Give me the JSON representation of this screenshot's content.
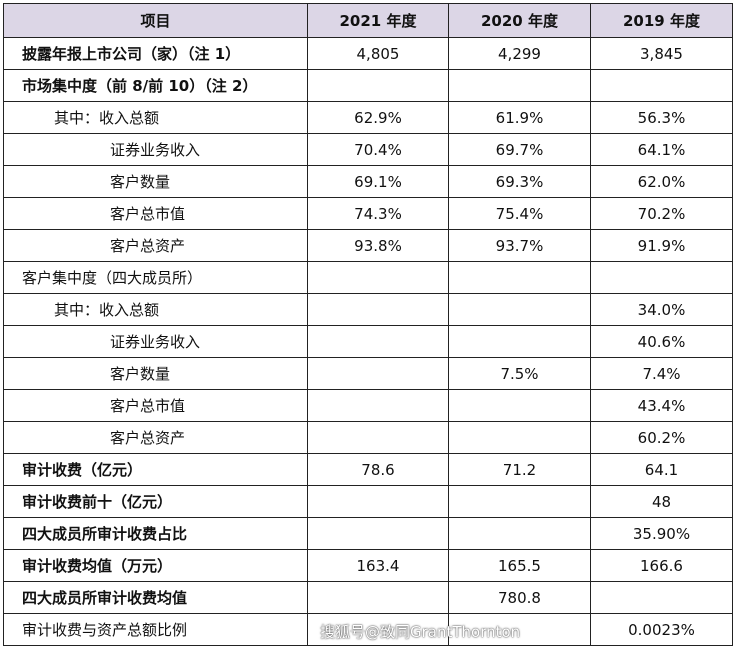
{
  "header": [
    "项目",
    "2021 年度",
    "2020 年度",
    "2019 年度"
  ],
  "rows": [
    {
      "label": "披露年报上市公司（家）（注 1）",
      "style": "b",
      "values": [
        "4,805",
        "4,299",
        "3,845"
      ]
    },
    {
      "label": "市场集中度（前 8/前 10）（注 2）",
      "style": "b",
      "values": [
        "",
        "",
        ""
      ]
    },
    {
      "label": "其中：收入总额",
      "style": "i1",
      "values": [
        "62.9%",
        "61.9%",
        "56.3%"
      ]
    },
    {
      "label": "证券业务收入",
      "style": "i2",
      "values": [
        "70.4%",
        "69.7%",
        "64.1%"
      ]
    },
    {
      "label": "客户数量",
      "style": "i2",
      "values": [
        "69.1%",
        "69.3%",
        "62.0%"
      ]
    },
    {
      "label": "客户总市值",
      "style": "i2",
      "values": [
        "74.3%",
        "75.4%",
        "70.2%"
      ]
    },
    {
      "label": "客户总资产",
      "style": "i2",
      "values": [
        "93.8%",
        "93.7%",
        "91.9%"
      ]
    },
    {
      "label": "客户集中度（四大成员所）",
      "style": "",
      "values": [
        "",
        "",
        ""
      ]
    },
    {
      "label": "其中：收入总额",
      "style": "i1",
      "values": [
        "",
        "",
        "34.0%"
      ]
    },
    {
      "label": "证券业务收入",
      "style": "i2",
      "values": [
        "",
        "",
        "40.6%"
      ]
    },
    {
      "label": "客户数量",
      "style": "i2",
      "values": [
        "",
        "7.5%",
        "7.4%"
      ]
    },
    {
      "label": "客户总市值",
      "style": "i2",
      "values": [
        "",
        "",
        "43.4%"
      ]
    },
    {
      "label": "客户总资产",
      "style": "i2",
      "values": [
        "",
        "",
        "60.2%"
      ]
    },
    {
      "label": "审计收费（亿元）",
      "style": "b",
      "values": [
        "78.6",
        "71.2",
        "64.1"
      ]
    },
    {
      "label": "审计收费前十（亿元）",
      "style": "b",
      "values": [
        "",
        "",
        "48"
      ]
    },
    {
      "label": "四大成员所审计收费占比",
      "style": "b",
      "values": [
        "",
        "",
        "35.90%"
      ]
    },
    {
      "label": "审计收费均值（万元）",
      "style": "b",
      "values": [
        "163.4",
        "165.5",
        "166.6"
      ]
    },
    {
      "label": "四大成员所审计收费均值",
      "style": "b",
      "values": [
        "",
        "780.8",
        ""
      ]
    },
    {
      "label": "审计收费与资产总额比例",
      "style": "",
      "values": [
        "",
        "",
        "0.0023%"
      ]
    }
  ],
  "watermark": "搜狐号@致同GrantThornton"
}
